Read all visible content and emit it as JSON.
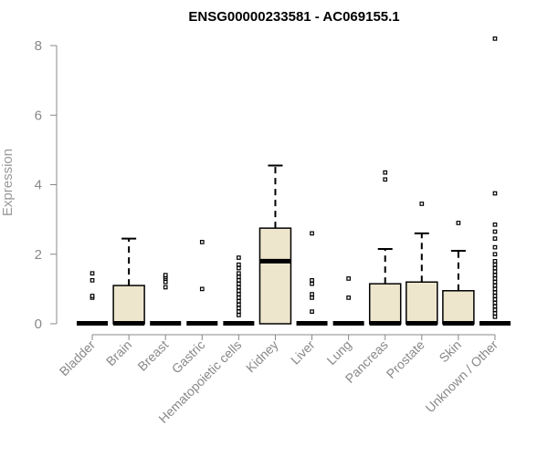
{
  "chart_data": {
    "type": "boxplot",
    "title": "ENSG00000233581 - AC069155.1",
    "xlabel": "",
    "ylabel": "Expression",
    "ylim": [
      0,
      8.2
    ],
    "yticks": [
      0,
      2,
      4,
      6,
      8
    ],
    "grid": false,
    "legend": "none",
    "colors": {
      "box_fill": "#ede6cc",
      "box_stroke": "#000000",
      "axis": "#888888"
    },
    "categories": [
      "Bladder",
      "Brain",
      "Breast",
      "Gastric",
      "Hematopoietic cells",
      "Kidney",
      "Liver",
      "Lung",
      "Pancreas",
      "Prostate",
      "Skin",
      "Unknown / Other"
    ],
    "boxes": [
      {
        "category": "Bladder",
        "min": 0,
        "q1": 0,
        "median": 0,
        "q3": 0,
        "max": 0,
        "outliers": [
          0.75,
          0.8,
          1.25,
          1.45
        ]
      },
      {
        "category": "Brain",
        "min": 0,
        "q1": 0,
        "median": 0,
        "q3": 1.1,
        "max": 2.45,
        "outliers": []
      },
      {
        "category": "Breast",
        "min": 0,
        "q1": 0,
        "median": 0,
        "q3": 0,
        "max": 0,
        "outliers": [
          1.05,
          1.2,
          1.3,
          1.35,
          1.4
        ]
      },
      {
        "category": "Gastric",
        "min": 0,
        "q1": 0,
        "median": 0,
        "q3": 0,
        "max": 0,
        "outliers": [
          1.0,
          2.35
        ]
      },
      {
        "category": "Hematopoietic cells",
        "min": 0,
        "q1": 0,
        "median": 0,
        "q3": 0,
        "max": 0,
        "outliers": [
          0.25,
          0.35,
          0.45,
          0.55,
          0.65,
          0.75,
          0.85,
          0.95,
          1.05,
          1.15,
          1.25,
          1.35,
          1.45,
          1.6,
          1.7,
          1.9
        ]
      },
      {
        "category": "Kidney",
        "min": 0,
        "q1": 0,
        "median": 1.8,
        "q3": 2.75,
        "max": 4.55,
        "outliers": []
      },
      {
        "category": "Liver",
        "min": 0,
        "q1": 0,
        "median": 0,
        "q3": 0,
        "max": 0,
        "outliers": [
          0.35,
          0.75,
          0.85,
          1.15,
          1.25,
          2.6
        ]
      },
      {
        "category": "Lung",
        "min": 0,
        "q1": 0,
        "median": 0,
        "q3": 0,
        "max": 0,
        "outliers": [
          0.75,
          1.3
        ]
      },
      {
        "category": "Pancreas",
        "min": 0,
        "q1": 0,
        "median": 0,
        "q3": 1.15,
        "max": 2.15,
        "outliers": [
          4.15,
          4.35
        ]
      },
      {
        "category": "Prostate",
        "min": 0,
        "q1": 0,
        "median": 0,
        "q3": 1.2,
        "max": 2.6,
        "outliers": [
          3.45
        ]
      },
      {
        "category": "Skin",
        "min": 0,
        "q1": 0,
        "median": 0,
        "q3": 0.95,
        "max": 2.1,
        "outliers": [
          2.9
        ]
      },
      {
        "category": "Unknown / Other",
        "min": 0,
        "q1": 0,
        "median": 0,
        "q3": 0,
        "max": 0,
        "outliers": [
          0.2,
          0.3,
          0.4,
          0.5,
          0.6,
          0.7,
          0.8,
          0.9,
          1.0,
          1.1,
          1.2,
          1.3,
          1.4,
          1.5,
          1.6,
          1.7,
          1.8,
          2.0,
          2.2,
          2.45,
          2.65,
          2.85,
          3.75,
          8.2
        ]
      }
    ]
  }
}
